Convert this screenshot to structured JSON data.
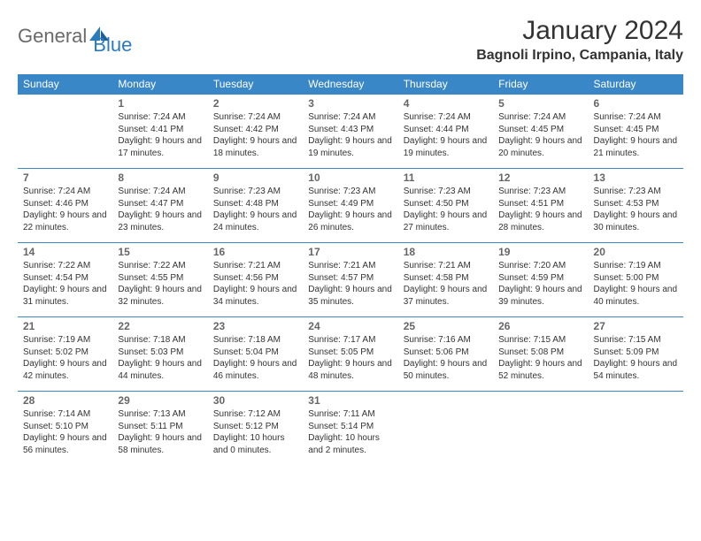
{
  "logo": {
    "part1": "General",
    "part2": "Blue"
  },
  "title": "January 2024",
  "location": "Bagnoli Irpino, Campania, Italy",
  "colors": {
    "header_bg": "#3a87c8",
    "header_text": "#ffffff",
    "border": "#3a87c8",
    "logo_gray": "#6a6a6a",
    "logo_blue": "#2b7bbf"
  },
  "daysOfWeek": [
    "Sunday",
    "Monday",
    "Tuesday",
    "Wednesday",
    "Thursday",
    "Friday",
    "Saturday"
  ],
  "weeks": [
    [
      {
        "num": "",
        "sunrise": "",
        "sunset": "",
        "daylight": ""
      },
      {
        "num": "1",
        "sunrise": "Sunrise: 7:24 AM",
        "sunset": "Sunset: 4:41 PM",
        "daylight": "Daylight: 9 hours and 17 minutes."
      },
      {
        "num": "2",
        "sunrise": "Sunrise: 7:24 AM",
        "sunset": "Sunset: 4:42 PM",
        "daylight": "Daylight: 9 hours and 18 minutes."
      },
      {
        "num": "3",
        "sunrise": "Sunrise: 7:24 AM",
        "sunset": "Sunset: 4:43 PM",
        "daylight": "Daylight: 9 hours and 19 minutes."
      },
      {
        "num": "4",
        "sunrise": "Sunrise: 7:24 AM",
        "sunset": "Sunset: 4:44 PM",
        "daylight": "Daylight: 9 hours and 19 minutes."
      },
      {
        "num": "5",
        "sunrise": "Sunrise: 7:24 AM",
        "sunset": "Sunset: 4:45 PM",
        "daylight": "Daylight: 9 hours and 20 minutes."
      },
      {
        "num": "6",
        "sunrise": "Sunrise: 7:24 AM",
        "sunset": "Sunset: 4:45 PM",
        "daylight": "Daylight: 9 hours and 21 minutes."
      }
    ],
    [
      {
        "num": "7",
        "sunrise": "Sunrise: 7:24 AM",
        "sunset": "Sunset: 4:46 PM",
        "daylight": "Daylight: 9 hours and 22 minutes."
      },
      {
        "num": "8",
        "sunrise": "Sunrise: 7:24 AM",
        "sunset": "Sunset: 4:47 PM",
        "daylight": "Daylight: 9 hours and 23 minutes."
      },
      {
        "num": "9",
        "sunrise": "Sunrise: 7:23 AM",
        "sunset": "Sunset: 4:48 PM",
        "daylight": "Daylight: 9 hours and 24 minutes."
      },
      {
        "num": "10",
        "sunrise": "Sunrise: 7:23 AM",
        "sunset": "Sunset: 4:49 PM",
        "daylight": "Daylight: 9 hours and 26 minutes."
      },
      {
        "num": "11",
        "sunrise": "Sunrise: 7:23 AM",
        "sunset": "Sunset: 4:50 PM",
        "daylight": "Daylight: 9 hours and 27 minutes."
      },
      {
        "num": "12",
        "sunrise": "Sunrise: 7:23 AM",
        "sunset": "Sunset: 4:51 PM",
        "daylight": "Daylight: 9 hours and 28 minutes."
      },
      {
        "num": "13",
        "sunrise": "Sunrise: 7:23 AM",
        "sunset": "Sunset: 4:53 PM",
        "daylight": "Daylight: 9 hours and 30 minutes."
      }
    ],
    [
      {
        "num": "14",
        "sunrise": "Sunrise: 7:22 AM",
        "sunset": "Sunset: 4:54 PM",
        "daylight": "Daylight: 9 hours and 31 minutes."
      },
      {
        "num": "15",
        "sunrise": "Sunrise: 7:22 AM",
        "sunset": "Sunset: 4:55 PM",
        "daylight": "Daylight: 9 hours and 32 minutes."
      },
      {
        "num": "16",
        "sunrise": "Sunrise: 7:21 AM",
        "sunset": "Sunset: 4:56 PM",
        "daylight": "Daylight: 9 hours and 34 minutes."
      },
      {
        "num": "17",
        "sunrise": "Sunrise: 7:21 AM",
        "sunset": "Sunset: 4:57 PM",
        "daylight": "Daylight: 9 hours and 35 minutes."
      },
      {
        "num": "18",
        "sunrise": "Sunrise: 7:21 AM",
        "sunset": "Sunset: 4:58 PM",
        "daylight": "Daylight: 9 hours and 37 minutes."
      },
      {
        "num": "19",
        "sunrise": "Sunrise: 7:20 AM",
        "sunset": "Sunset: 4:59 PM",
        "daylight": "Daylight: 9 hours and 39 minutes."
      },
      {
        "num": "20",
        "sunrise": "Sunrise: 7:19 AM",
        "sunset": "Sunset: 5:00 PM",
        "daylight": "Daylight: 9 hours and 40 minutes."
      }
    ],
    [
      {
        "num": "21",
        "sunrise": "Sunrise: 7:19 AM",
        "sunset": "Sunset: 5:02 PM",
        "daylight": "Daylight: 9 hours and 42 minutes."
      },
      {
        "num": "22",
        "sunrise": "Sunrise: 7:18 AM",
        "sunset": "Sunset: 5:03 PM",
        "daylight": "Daylight: 9 hours and 44 minutes."
      },
      {
        "num": "23",
        "sunrise": "Sunrise: 7:18 AM",
        "sunset": "Sunset: 5:04 PM",
        "daylight": "Daylight: 9 hours and 46 minutes."
      },
      {
        "num": "24",
        "sunrise": "Sunrise: 7:17 AM",
        "sunset": "Sunset: 5:05 PM",
        "daylight": "Daylight: 9 hours and 48 minutes."
      },
      {
        "num": "25",
        "sunrise": "Sunrise: 7:16 AM",
        "sunset": "Sunset: 5:06 PM",
        "daylight": "Daylight: 9 hours and 50 minutes."
      },
      {
        "num": "26",
        "sunrise": "Sunrise: 7:15 AM",
        "sunset": "Sunset: 5:08 PM",
        "daylight": "Daylight: 9 hours and 52 minutes."
      },
      {
        "num": "27",
        "sunrise": "Sunrise: 7:15 AM",
        "sunset": "Sunset: 5:09 PM",
        "daylight": "Daylight: 9 hours and 54 minutes."
      }
    ],
    [
      {
        "num": "28",
        "sunrise": "Sunrise: 7:14 AM",
        "sunset": "Sunset: 5:10 PM",
        "daylight": "Daylight: 9 hours and 56 minutes."
      },
      {
        "num": "29",
        "sunrise": "Sunrise: 7:13 AM",
        "sunset": "Sunset: 5:11 PM",
        "daylight": "Daylight: 9 hours and 58 minutes."
      },
      {
        "num": "30",
        "sunrise": "Sunrise: 7:12 AM",
        "sunset": "Sunset: 5:12 PM",
        "daylight": "Daylight: 10 hours and 0 minutes."
      },
      {
        "num": "31",
        "sunrise": "Sunrise: 7:11 AM",
        "sunset": "Sunset: 5:14 PM",
        "daylight": "Daylight: 10 hours and 2 minutes."
      },
      {
        "num": "",
        "sunrise": "",
        "sunset": "",
        "daylight": ""
      },
      {
        "num": "",
        "sunrise": "",
        "sunset": "",
        "daylight": ""
      },
      {
        "num": "",
        "sunrise": "",
        "sunset": "",
        "daylight": ""
      }
    ]
  ]
}
